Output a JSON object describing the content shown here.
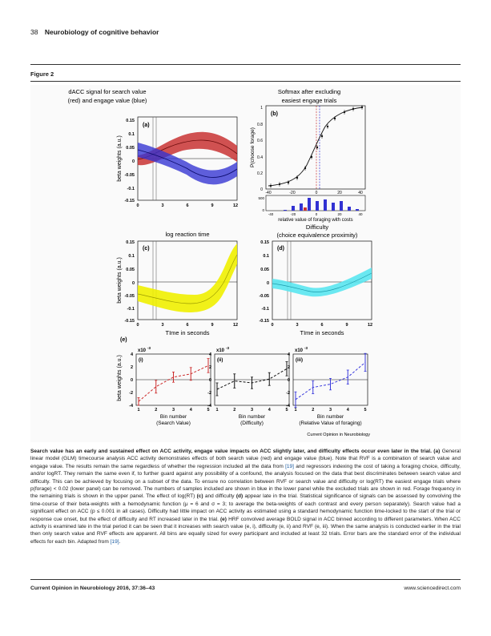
{
  "header": {
    "page_number": "38",
    "running_title": "Neurobiology of cognitive behavior"
  },
  "figure_label": "Figure 2",
  "figure": {
    "panel_a": {
      "title_l1": "dACC signal for search value",
      "title_l2": "(red) and engage value (blue)",
      "label": "(a)",
      "ylabel": "beta weights (a.u.)",
      "yticks": [
        "0.15",
        "0.1",
        "0.05",
        "0",
        "-0.05",
        "-0.1",
        "-0.15"
      ],
      "xticks": [
        "0",
        "3",
        "6",
        "9",
        "12"
      ]
    },
    "panel_b": {
      "title_l1": "Softmax after excluding",
      "title_l2": "easiest engage trials",
      "label": "(b)",
      "ylabel": "P(choose forage)",
      "yticks": [
        "1",
        "0.8",
        "0.6",
        "0.4",
        "0.2",
        "0"
      ],
      "xticks": [
        "-40",
        "-20",
        "0",
        "20",
        "40"
      ],
      "hist_ytick": "500",
      "hist_ytick0": "0",
      "hist_xticks": [
        "-40",
        "-20",
        "0",
        "20",
        "40"
      ],
      "xlabel": "relative value of foraging with costs"
    },
    "panel_c": {
      "title": "log reaction time",
      "label": "(c)",
      "ylabel": "beta weights (a.u.)",
      "yticks": [
        "0.15",
        "0.1",
        "0.05",
        "0",
        "-0.05",
        "-0.1",
        "-0.15"
      ],
      "xticks": [
        "0",
        "3",
        "6",
        "9",
        "12"
      ],
      "xlabel": "TIme in seconds"
    },
    "panel_d": {
      "title_l1": "Difficulty",
      "title_l2": "(choice equivalence proximity)",
      "label": "(d)",
      "yticks": [
        "0.15",
        "0.1",
        "0.05",
        "0",
        "-0.05",
        "-0.1",
        "-0.15"
      ],
      "xticks": [
        "0",
        "3",
        "6",
        "9",
        "12"
      ],
      "xlabel": "TIme in seconds"
    },
    "panel_e": {
      "label": "(e)",
      "ylabel": "beta weights (a.u.)",
      "scale": "x10",
      "scale_exp": "-3",
      "yticks": [
        "4",
        "2",
        "0",
        "-2",
        "-4"
      ],
      "xticks": [
        "1",
        "2",
        "3",
        "4",
        "5"
      ],
      "subpanels": [
        {
          "label": "(i)",
          "xlabel_l1": "Bin number",
          "xlabel_l2": "(Search Value)",
          "color": "#cc2a2a"
        },
        {
          "label": "(ii)",
          "xlabel_l1": "Bin number",
          "xlabel_l2": "(Difficulty)",
          "color": "#111111"
        },
        {
          "label": "(iii)",
          "xlabel_l1": "Bin number",
          "xlabel_l2": "(Relative Value of foraging)",
          "color": "#3a3adc"
        }
      ]
    },
    "credit": "Current Opinion in Neurobiology",
    "colors": {
      "search": "#c83232",
      "engage": "#3232d2",
      "rt": "#f0f000",
      "difficulty": "#5ae6f0"
    }
  },
  "caption": {
    "bold": "Search value has an early and sustained effect on ACC activity, engage value impacts on ACC slightly later, and difficulty effects occur even later in the trial. (a)",
    "t1": " General linear model (GLM) timecourse analysis ACC activity demonstrates effects of both search value (red) and engage value (blue). Note that RVF is a combination of search value and engage value. The results remain the same regardless of whether the regression included all the data from ",
    "ref1": "[19]",
    "t2": " and regressors indexing the cost of taking a foraging choice, difficulty, and/or logRT. They remain the same even if, to further guard against any possibility of a confound, the analysis focused on the data that best discriminates between search value and difficulty. This can be achieved by focusing on a subset of the data. To ensure no correlation between RVF or search value and difficulty or log(RT) the easiest engage trials where ",
    "t3": "p(forage) < 0.02 (lower panel) can be removed. The numbers of samples included are shown in blue in the lower panel while the excluded trials are shown in red. Forage frequency in the remaining trials is shown in the upper panel. The effect of log(RT) ",
    "c_label": "(c)",
    "t4": " and difficulty ",
    "d_label": "(d)",
    "t5": " appear late in the trial. Statistical significance of signals can be assessed by convolving the time-course of their beta-weights with a hemodynamic function (μ = 6 and σ = 3; to average the beta-weights of each contrast and every person separately). Search value had a significant effect on ACC (p ≤ 0.001 in all cases). Difficulty had little impact on ACC activity as estimated using a standard hemodynamic function time-locked to the start of the trial or response cue onset, but the effect of difficulty and RT increased later in the trial. ",
    "e_label": "(e)",
    "t6": " HRF convolved average BOLD signal in ACC binned according to different parameters. When ACC activity is examined late in the trial period it can be seen that it increases with search value (e, i), difficulty (e, ii) and RVF (e, iii). When the same analysis is conducted earlier in the trial then only search value and RVF effects are apparent. All bins are equally sized for every participant and included at least 32 trials. Error bars are the standard error of the individual effects for each bin. Adapted from ",
    "ref2": "[19]",
    "t7": "."
  },
  "footer": {
    "left": "Current Opinion in Neurobiology 2016, 37:36–43",
    "right": "www.sciencedirect.com"
  }
}
